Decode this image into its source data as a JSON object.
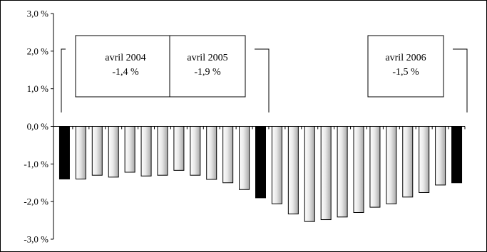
{
  "chart_data": {
    "type": "bar",
    "title": "",
    "xlabel": "",
    "ylabel": "",
    "ylim": [
      -3.0,
      3.0
    ],
    "y_ticks": [
      {
        "value": 3.0,
        "label": "3,0 %"
      },
      {
        "value": 2.0,
        "label": "2,0 %"
      },
      {
        "value": 1.0,
        "label": "1,0 %"
      },
      {
        "value": 0.0,
        "label": "0,0 %"
      },
      {
        "value": -1.0,
        "label": "-1,0 %"
      },
      {
        "value": -2.0,
        "label": "-2,0 %"
      },
      {
        "value": -3.0,
        "label": "-3,0 %"
      }
    ],
    "grid": false,
    "legend": "none",
    "values": [
      -1.4,
      -1.4,
      -1.3,
      -1.35,
      -1.22,
      -1.32,
      -1.3,
      -1.17,
      -1.3,
      -1.41,
      -1.5,
      -1.68,
      -1.9,
      -2.06,
      -2.33,
      -2.53,
      -2.48,
      -2.41,
      -2.29,
      -2.15,
      -2.06,
      -1.88,
      -1.76,
      -1.56,
      -1.5
    ],
    "highlighted_indices": [
      0,
      12,
      24
    ],
    "colors": {
      "highlight": "#000000",
      "normal_edge": "#000000",
      "normal_fill_light": "#ffffff",
      "normal_fill_dark": "#a8a8a8"
    },
    "annotations": [
      {
        "bar_index": 0,
        "line1": "avril 2004",
        "line2": "-1,4 %"
      },
      {
        "bar_index": 12,
        "line1": "avril 2005",
        "line2": "-1,9 %"
      },
      {
        "bar_index": 24,
        "line1": "avril 2006",
        "line2": "-1,5 %"
      }
    ]
  }
}
